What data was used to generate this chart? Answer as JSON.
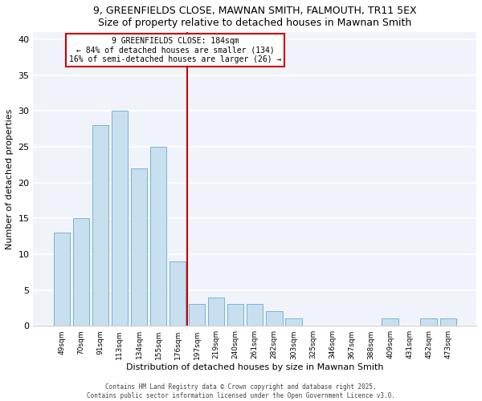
{
  "title": "9, GREENFIELDS CLOSE, MAWNAN SMITH, FALMOUTH, TR11 5EX",
  "subtitle": "Size of property relative to detached houses in Mawnan Smith",
  "xlabel": "Distribution of detached houses by size in Mawnan Smith",
  "ylabel": "Number of detached properties",
  "bar_color": "#c8dff0",
  "bar_edge_color": "#7ab0d4",
  "background_color": "#ffffff",
  "plot_bg_color": "#f0f4fa",
  "categories": [
    "49sqm",
    "70sqm",
    "91sqm",
    "113sqm",
    "134sqm",
    "155sqm",
    "176sqm",
    "197sqm",
    "219sqm",
    "240sqm",
    "261sqm",
    "282sqm",
    "303sqm",
    "325sqm",
    "346sqm",
    "367sqm",
    "388sqm",
    "409sqm",
    "431sqm",
    "452sqm",
    "473sqm"
  ],
  "values": [
    13,
    15,
    28,
    30,
    22,
    25,
    9,
    3,
    4,
    3,
    3,
    2,
    1,
    0,
    0,
    0,
    0,
    1,
    0,
    1,
    1
  ],
  "vline_x": 6.5,
  "vline_color": "#cc0000",
  "ylim": [
    0,
    41
  ],
  "yticks": [
    0,
    5,
    10,
    15,
    20,
    25,
    30,
    35,
    40
  ],
  "annotation_title": "9 GREENFIELDS CLOSE: 184sqm",
  "annotation_line1": "← 84% of detached houses are smaller (134)",
  "annotation_line2": "16% of semi-detached houses are larger (26) →",
  "footnote1": "Contains HM Land Registry data © Crown copyright and database right 2025.",
  "footnote2": "Contains public sector information licensed under the Open Government Licence v3.0."
}
